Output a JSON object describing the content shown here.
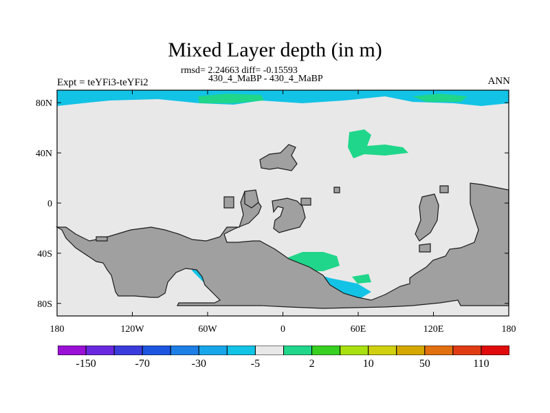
{
  "title": "Mixed Layer depth (in m)",
  "stats": "rmsd= 2.24663 diff= -0.15593",
  "subtitle": "430_4_MaBP - 430_4_MaBP",
  "expt_label": "Expt = teYFi3-teYFi2",
  "season": "ANN",
  "lat_ticks": [
    {
      "label": "80N",
      "lat": 80
    },
    {
      "label": "40N",
      "lat": 40
    },
    {
      "label": "0",
      "lat": 0
    },
    {
      "label": "40S",
      "lat": -40
    },
    {
      "label": "80S",
      "lat": -80
    }
  ],
  "lon_ticks": [
    {
      "label": "180",
      "lon": -180
    },
    {
      "label": "120W",
      "lon": -120
    },
    {
      "label": "60W",
      "lon": -60
    },
    {
      "label": "0",
      "lon": 0
    },
    {
      "label": "60E",
      "lon": 60
    },
    {
      "label": "120E",
      "lon": 120
    },
    {
      "label": "180",
      "lon": 180
    }
  ],
  "colorbar": {
    "colors": [
      "#9a10d6",
      "#6a28e0",
      "#3b3cdc",
      "#1c56e0",
      "#1e7fe6",
      "#18a6ea",
      "#12c3e6",
      "#e8e8e8",
      "#20d68a",
      "#38d020",
      "#a8e010",
      "#d0d010",
      "#d4a800",
      "#e07010",
      "#e03c14",
      "#e00c0c"
    ],
    "labels": [
      "-150",
      "-70",
      "-30",
      "-5",
      "2",
      "10",
      "50",
      "110"
    ]
  },
  "colors": {
    "land": "#a0a0a0",
    "ocean": "#e8e8e8",
    "coast": "#1a1a1a"
  }
}
